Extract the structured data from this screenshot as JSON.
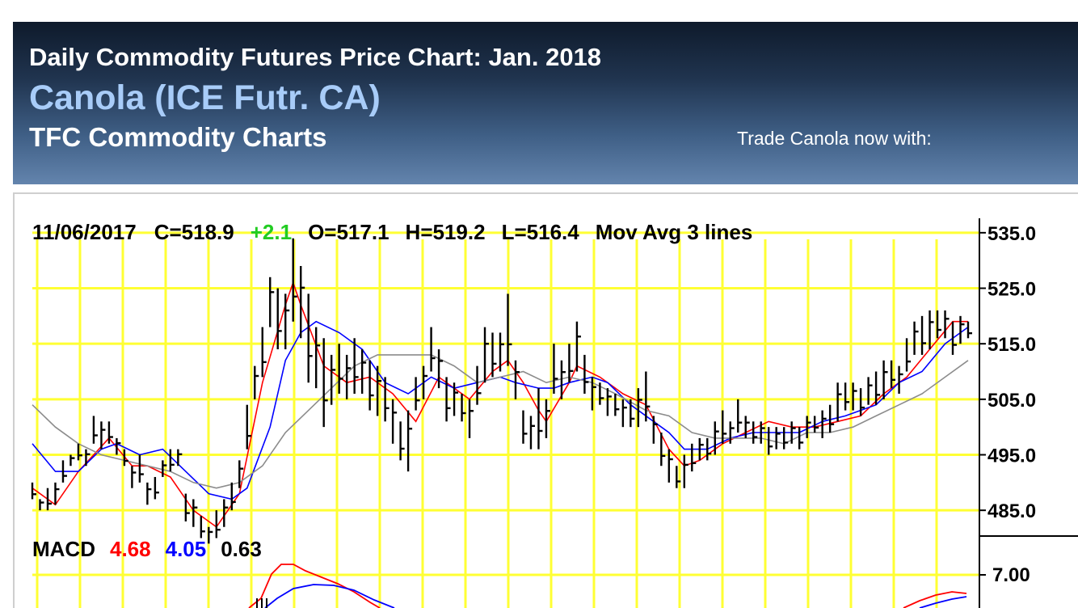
{
  "header": {
    "title": "Daily Commodity Futures Price Chart: Jan. 2018",
    "commodity": "Canola (ICE Futr. CA)",
    "brand": "TFC Commodity Charts",
    "trade_text": "Trade Canola now with:"
  },
  "colors": {
    "grid": "#ffff33",
    "ma_fast": "#ff0000",
    "ma_mid": "#0000ff",
    "ma_slow": "#8c8c8c",
    "change_positive": "#22cc22",
    "macd_value": "#ff0000",
    "macd_signal": "#0000ff"
  },
  "chart_data": [
    {
      "type": "line",
      "subtype": "ohlc",
      "info": {
        "date": "11/06/2017",
        "close": "C=518.9",
        "change": "+2.1",
        "open": "O=517.1",
        "high": "H=519.2",
        "low": "L=516.4",
        "indicator": "Mov Avg 3 lines"
      },
      "y_ticks": [
        "535.0",
        "525.0",
        "515.0",
        "505.0",
        "495.0",
        "485.0"
      ],
      "ylim": [
        480.8,
        537.6
      ],
      "grid": true,
      "bars": [
        [
          490,
          487
        ],
        [
          487,
          485
        ],
        [
          489,
          485
        ],
        [
          490,
          486
        ],
        [
          494,
          490
        ],
        [
          495,
          493
        ],
        [
          497,
          494
        ],
        [
          496,
          493
        ],
        [
          502,
          497
        ],
        [
          501,
          496
        ],
        [
          501,
          497
        ],
        [
          498,
          495
        ],
        [
          496,
          493
        ],
        [
          493,
          489
        ],
        [
          495,
          490
        ],
        [
          490,
          486
        ],
        [
          491,
          487
        ],
        [
          494,
          491
        ],
        [
          496,
          492
        ],
        [
          496,
          493
        ],
        [
          488,
          483
        ],
        [
          487,
          482
        ],
        [
          484,
          480
        ],
        [
          482,
          479
        ],
        [
          485,
          480
        ],
        [
          487,
          482
        ],
        [
          490,
          485
        ],
        [
          494,
          489
        ],
        [
          504,
          496
        ],
        [
          511,
          505
        ],
        [
          518,
          509
        ],
        [
          527,
          518
        ],
        [
          525,
          514
        ],
        [
          524,
          514
        ],
        [
          534,
          519
        ],
        [
          529,
          516
        ],
        [
          524,
          508
        ],
        [
          518,
          507
        ],
        [
          516,
          500
        ],
        [
          513,
          504
        ],
        [
          515,
          506
        ],
        [
          513,
          505
        ],
        [
          516,
          506
        ],
        [
          514,
          506
        ],
        [
          512,
          503
        ],
        [
          511,
          502
        ],
        [
          509,
          501
        ],
        [
          505,
          497
        ],
        [
          501,
          494
        ],
        [
          503,
          492
        ],
        [
          509,
          503
        ],
        [
          511,
          505
        ],
        [
          518,
          510
        ],
        [
          514,
          507
        ],
        [
          509,
          501
        ],
        [
          508,
          502
        ],
        [
          506,
          501
        ],
        [
          505,
          498
        ],
        [
          511,
          504
        ],
        [
          518,
          508
        ],
        [
          517,
          509
        ],
        [
          517,
          510
        ],
        [
          524,
          511
        ],
        [
          512,
          505
        ],
        [
          503,
          497
        ],
        [
          502,
          496
        ],
        [
          507,
          496
        ],
        [
          505,
          498
        ],
        [
          515,
          506
        ],
        [
          512,
          505
        ],
        [
          515,
          508
        ],
        [
          519,
          510
        ],
        [
          513,
          506
        ],
        [
          509,
          503
        ],
        [
          508,
          504
        ],
        [
          507,
          502
        ],
        [
          506,
          502
        ],
        [
          505,
          500
        ],
        [
          505,
          500
        ],
        [
          507,
          500
        ],
        [
          510,
          501
        ],
        [
          502,
          497
        ],
        [
          499,
          493
        ],
        [
          496,
          490
        ],
        [
          493,
          489
        ],
        [
          495,
          489
        ],
        [
          497,
          492
        ],
        [
          498,
          494
        ],
        [
          498,
          494
        ],
        [
          501,
          495
        ],
        [
          503,
          497
        ],
        [
          501,
          497
        ],
        [
          505,
          499
        ],
        [
          502,
          498
        ],
        [
          501,
          497
        ],
        [
          501,
          497
        ],
        [
          500,
          495
        ],
        [
          500,
          496
        ],
        [
          500,
          496
        ],
        [
          501,
          497
        ],
        [
          500,
          496
        ],
        [
          502,
          498
        ],
        [
          502,
          499
        ],
        [
          503,
          498
        ],
        [
          504,
          499
        ],
        [
          508,
          501
        ],
        [
          508,
          503
        ],
        [
          508,
          503
        ],
        [
          507,
          502
        ],
        [
          509,
          504
        ],
        [
          510,
          504
        ],
        [
          512,
          505
        ],
        [
          512,
          507
        ],
        [
          511,
          506
        ],
        [
          516,
          510
        ],
        [
          519,
          513
        ],
        [
          520,
          513
        ],
        [
          521,
          514
        ],
        [
          521,
          516
        ],
        [
          521,
          516
        ],
        [
          519,
          513
        ],
        [
          520,
          515
        ],
        [
          519,
          516
        ]
      ],
      "series": [
        {
          "name": "MA fast",
          "color": "#ff0000",
          "values": [
            [
              0,
              489
            ],
            [
              3,
              486
            ],
            [
              6,
              492
            ],
            [
              10,
              498
            ],
            [
              13,
              493
            ],
            [
              15,
              493
            ],
            [
              18,
              491
            ],
            [
              21,
              485
            ],
            [
              24,
              482
            ],
            [
              27,
              488
            ],
            [
              30,
              508
            ],
            [
              33,
              522
            ],
            [
              34,
              526
            ],
            [
              35,
              522
            ],
            [
              38,
              511
            ],
            [
              41,
              508
            ],
            [
              44,
              509
            ],
            [
              47,
              506
            ],
            [
              50,
              501
            ],
            [
              53,
              509
            ],
            [
              55,
              507
            ],
            [
              57,
              505
            ],
            [
              60,
              510
            ],
            [
              62,
              512
            ],
            [
              64,
              508
            ],
            [
              66,
              503
            ],
            [
              67,
              501
            ],
            [
              70,
              508
            ],
            [
              71,
              511
            ],
            [
              74,
              509
            ],
            [
              77,
              506
            ],
            [
              80,
              504
            ],
            [
              83,
              496
            ],
            [
              85,
              493
            ],
            [
              87,
              494
            ],
            [
              90,
              497
            ],
            [
              93,
              499
            ],
            [
              96,
              501
            ],
            [
              99,
              500
            ],
            [
              102,
              500
            ],
            [
              105,
              501
            ],
            [
              108,
              502
            ],
            [
              111,
              506
            ],
            [
              114,
              509
            ],
            [
              117,
              514
            ],
            [
              120,
              519
            ],
            [
              122,
              519
            ]
          ]
        },
        {
          "name": "MA mid",
          "color": "#0000ff",
          "values": [
            [
              0,
              497
            ],
            [
              3,
              492
            ],
            [
              6,
              492
            ],
            [
              9,
              496
            ],
            [
              11,
              497
            ],
            [
              14,
              495
            ],
            [
              17,
              496
            ],
            [
              20,
              492
            ],
            [
              23,
              488
            ],
            [
              26,
              487
            ],
            [
              28,
              489
            ],
            [
              31,
              500
            ],
            [
              33,
              512
            ],
            [
              35,
              517
            ],
            [
              37,
              519
            ],
            [
              40,
              517
            ],
            [
              43,
              514
            ],
            [
              46,
              508
            ],
            [
              49,
              506
            ],
            [
              52,
              509
            ],
            [
              55,
              507
            ],
            [
              58,
              508
            ],
            [
              61,
              509
            ],
            [
              63,
              508
            ],
            [
              66,
              507
            ],
            [
              68,
              507
            ],
            [
              70,
              508
            ],
            [
              73,
              509
            ],
            [
              75,
              508
            ],
            [
              78,
              504
            ],
            [
              81,
              501
            ],
            [
              83,
              499
            ],
            [
              85,
              496
            ],
            [
              88,
              496
            ],
            [
              91,
              498
            ],
            [
              94,
              499
            ],
            [
              97,
              499
            ],
            [
              100,
              499
            ],
            [
              103,
              501
            ],
            [
              106,
              502
            ],
            [
              110,
              504
            ],
            [
              113,
              508
            ],
            [
              116,
              510
            ],
            [
              119,
              515
            ],
            [
              122,
              518
            ]
          ]
        },
        {
          "name": "MA slow",
          "color": "#8c8c8c",
          "values": [
            [
              0,
              504
            ],
            [
              3,
              500
            ],
            [
              6,
              497
            ],
            [
              9,
              495
            ],
            [
              12,
              494
            ],
            [
              15,
              493
            ],
            [
              18,
              492
            ],
            [
              21,
              490
            ],
            [
              24,
              489
            ],
            [
              27,
              490
            ],
            [
              30,
              493
            ],
            [
              33,
              499
            ],
            [
              36,
              503
            ],
            [
              39,
              507
            ],
            [
              42,
              511
            ],
            [
              45,
              513
            ],
            [
              48,
              513
            ],
            [
              52,
              513
            ],
            [
              55,
              511
            ],
            [
              58,
              508
            ],
            [
              61,
              509
            ],
            [
              64,
              510
            ],
            [
              67,
              508
            ],
            [
              70,
              509
            ],
            [
              73,
              508
            ],
            [
              76,
              506
            ],
            [
              80,
              503
            ],
            [
              83,
              502
            ],
            [
              86,
              499
            ],
            [
              89,
              498
            ],
            [
              92,
              498
            ],
            [
              95,
              498
            ],
            [
              98,
              497
            ],
            [
              101,
              499
            ],
            [
              104,
              499
            ],
            [
              107,
              500
            ],
            [
              110,
              502
            ],
            [
              113,
              504
            ],
            [
              116,
              506
            ],
            [
              119,
              509
            ],
            [
              122,
              512
            ]
          ]
        }
      ]
    },
    {
      "type": "line",
      "title": "MACD",
      "values_text": [
        "4.68",
        "4.05",
        "0.63"
      ],
      "y_ticks": [
        "7.00"
      ]
    }
  ]
}
